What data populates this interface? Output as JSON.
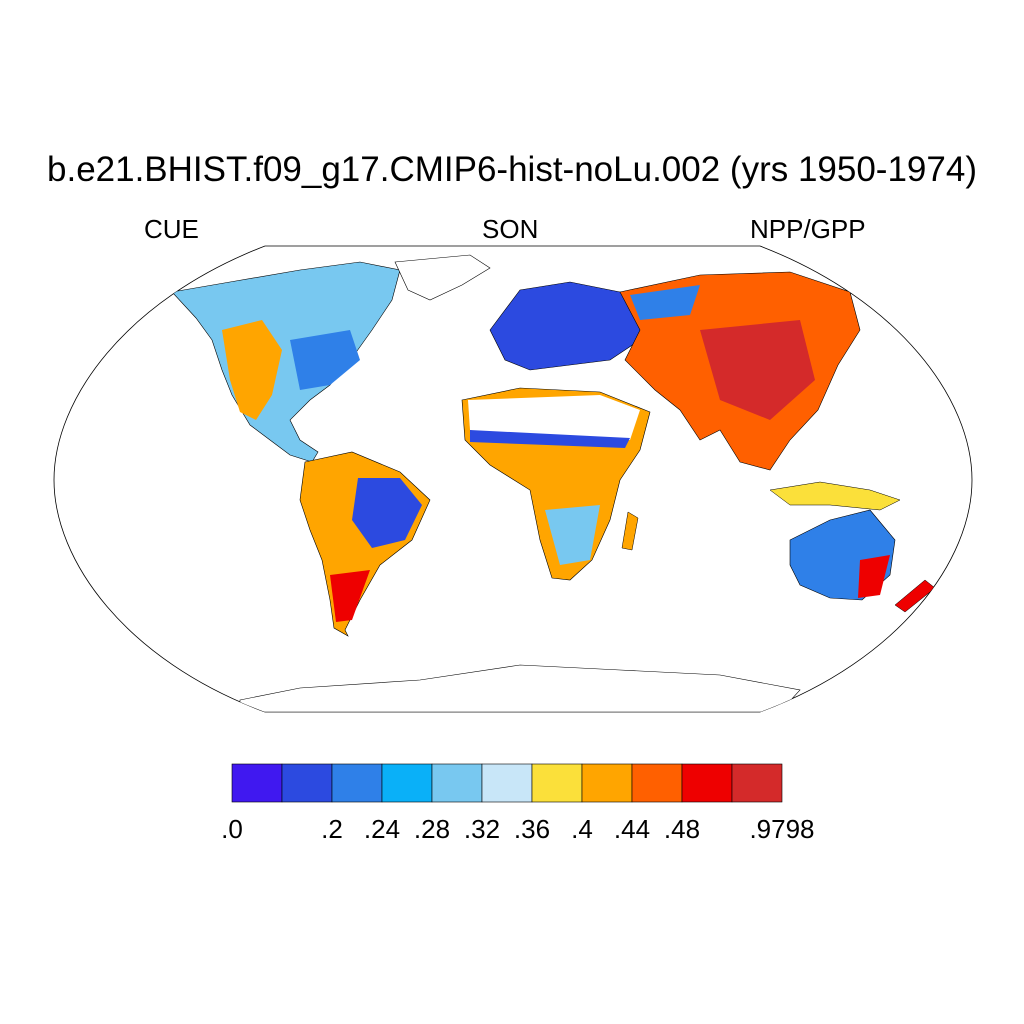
{
  "title": "b.e21.BHIST.f09_g17.CMIP6-hist-noLu.002 (yrs 1950-1974)",
  "left_string": "CUE",
  "center_string": "SON",
  "right_string": "NPP/GPP",
  "colorbar": {
    "colors": [
      "#4018f0",
      "#2c4ae0",
      "#2f80e8",
      "#0ab0f8",
      "#78c8f0",
      "#c8e6f8",
      "#fbe03a",
      "#ffa500",
      "#ff6000",
      "#ee0000",
      "#d42a2a"
    ],
    "tick_labels": [
      ".0",
      "",
      ".2",
      ".24",
      ".28",
      ".32",
      ".36",
      ".4",
      ".44",
      ".48",
      "",
      ".9798"
    ]
  },
  "map": {
    "projection": "Robinson",
    "missing_color": "#ffffff",
    "coastline_color": "#000000"
  }
}
